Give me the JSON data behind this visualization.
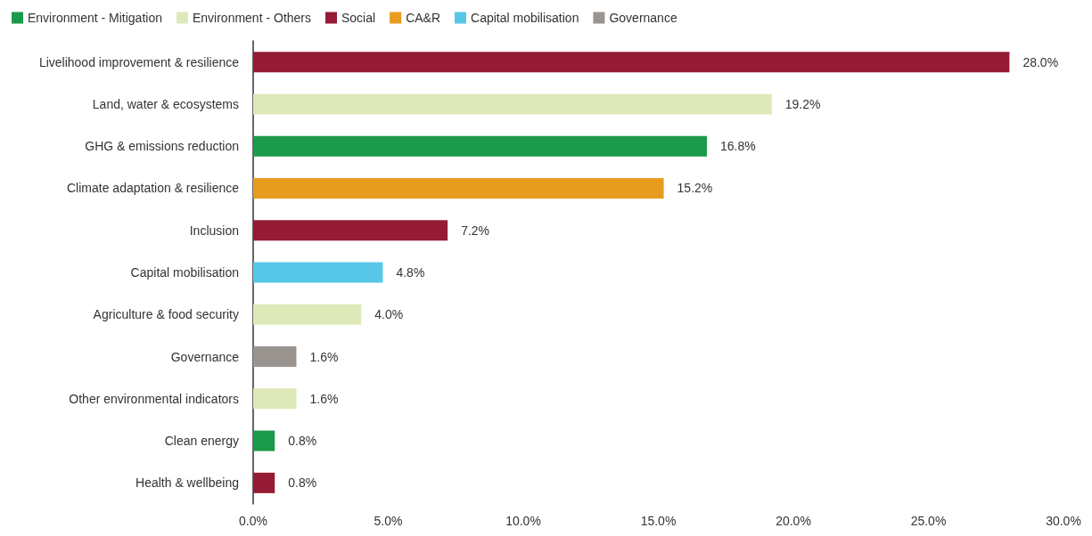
{
  "chart_data": {
    "type": "bar",
    "orientation": "horizontal",
    "stacked": true,
    "categories": [
      "Livelihood improvement & resilience",
      "Land, water & ecosystems",
      "GHG & emissions reduction",
      "Climate adaptation & resilience",
      "Inclusion",
      "Capital mobilisation",
      "Agriculture & food security",
      "Governance",
      "Other environmental indicators",
      "Clean energy",
      "Health & wellbeing"
    ],
    "series": [
      {
        "name": "Environment - Mitigation",
        "color": "#1a9a4a",
        "values": [
          null,
          null,
          16.8,
          null,
          null,
          null,
          null,
          null,
          null,
          0.8,
          null
        ]
      },
      {
        "name": "Environment - Others",
        "color": "#dde9b8",
        "values": [
          null,
          19.2,
          null,
          null,
          null,
          null,
          4.0,
          null,
          1.6,
          null,
          null
        ]
      },
      {
        "name": "Social",
        "color": "#961b35",
        "values": [
          28.0,
          null,
          null,
          null,
          7.2,
          null,
          null,
          null,
          null,
          null,
          0.8
        ]
      },
      {
        "name": "CA&R",
        "color": "#e89c1e",
        "values": [
          null,
          null,
          null,
          15.2,
          null,
          null,
          null,
          null,
          null,
          null,
          null
        ]
      },
      {
        "name": "Capital mobilisation",
        "color": "#57c7e8",
        "values": [
          null,
          null,
          null,
          null,
          null,
          4.8,
          null,
          null,
          null,
          null,
          null
        ]
      },
      {
        "name": "Governance",
        "color": "#9a9490",
        "values": [
          null,
          null,
          null,
          null,
          null,
          null,
          null,
          1.6,
          null,
          null,
          null
        ]
      }
    ],
    "value_labels": [
      "28.0%",
      "19.2%",
      "16.8%",
      "15.2%",
      "7.2%",
      "4.8%",
      "4.0%",
      "1.6%",
      "1.6%",
      "0.8%",
      "0.8%"
    ],
    "xlim": [
      0,
      30
    ],
    "xticks": [
      {
        "value": 0,
        "label": "0.0%"
      },
      {
        "value": 5,
        "label": "5.0%"
      },
      {
        "value": 10,
        "label": "10.0%"
      },
      {
        "value": 15,
        "label": "15.0%"
      },
      {
        "value": 20,
        "label": "20.0%"
      },
      {
        "value": 25,
        "label": "25.0%"
      },
      {
        "value": 30,
        "label": "30.0%"
      }
    ],
    "grid": false,
    "legend": "top left"
  }
}
